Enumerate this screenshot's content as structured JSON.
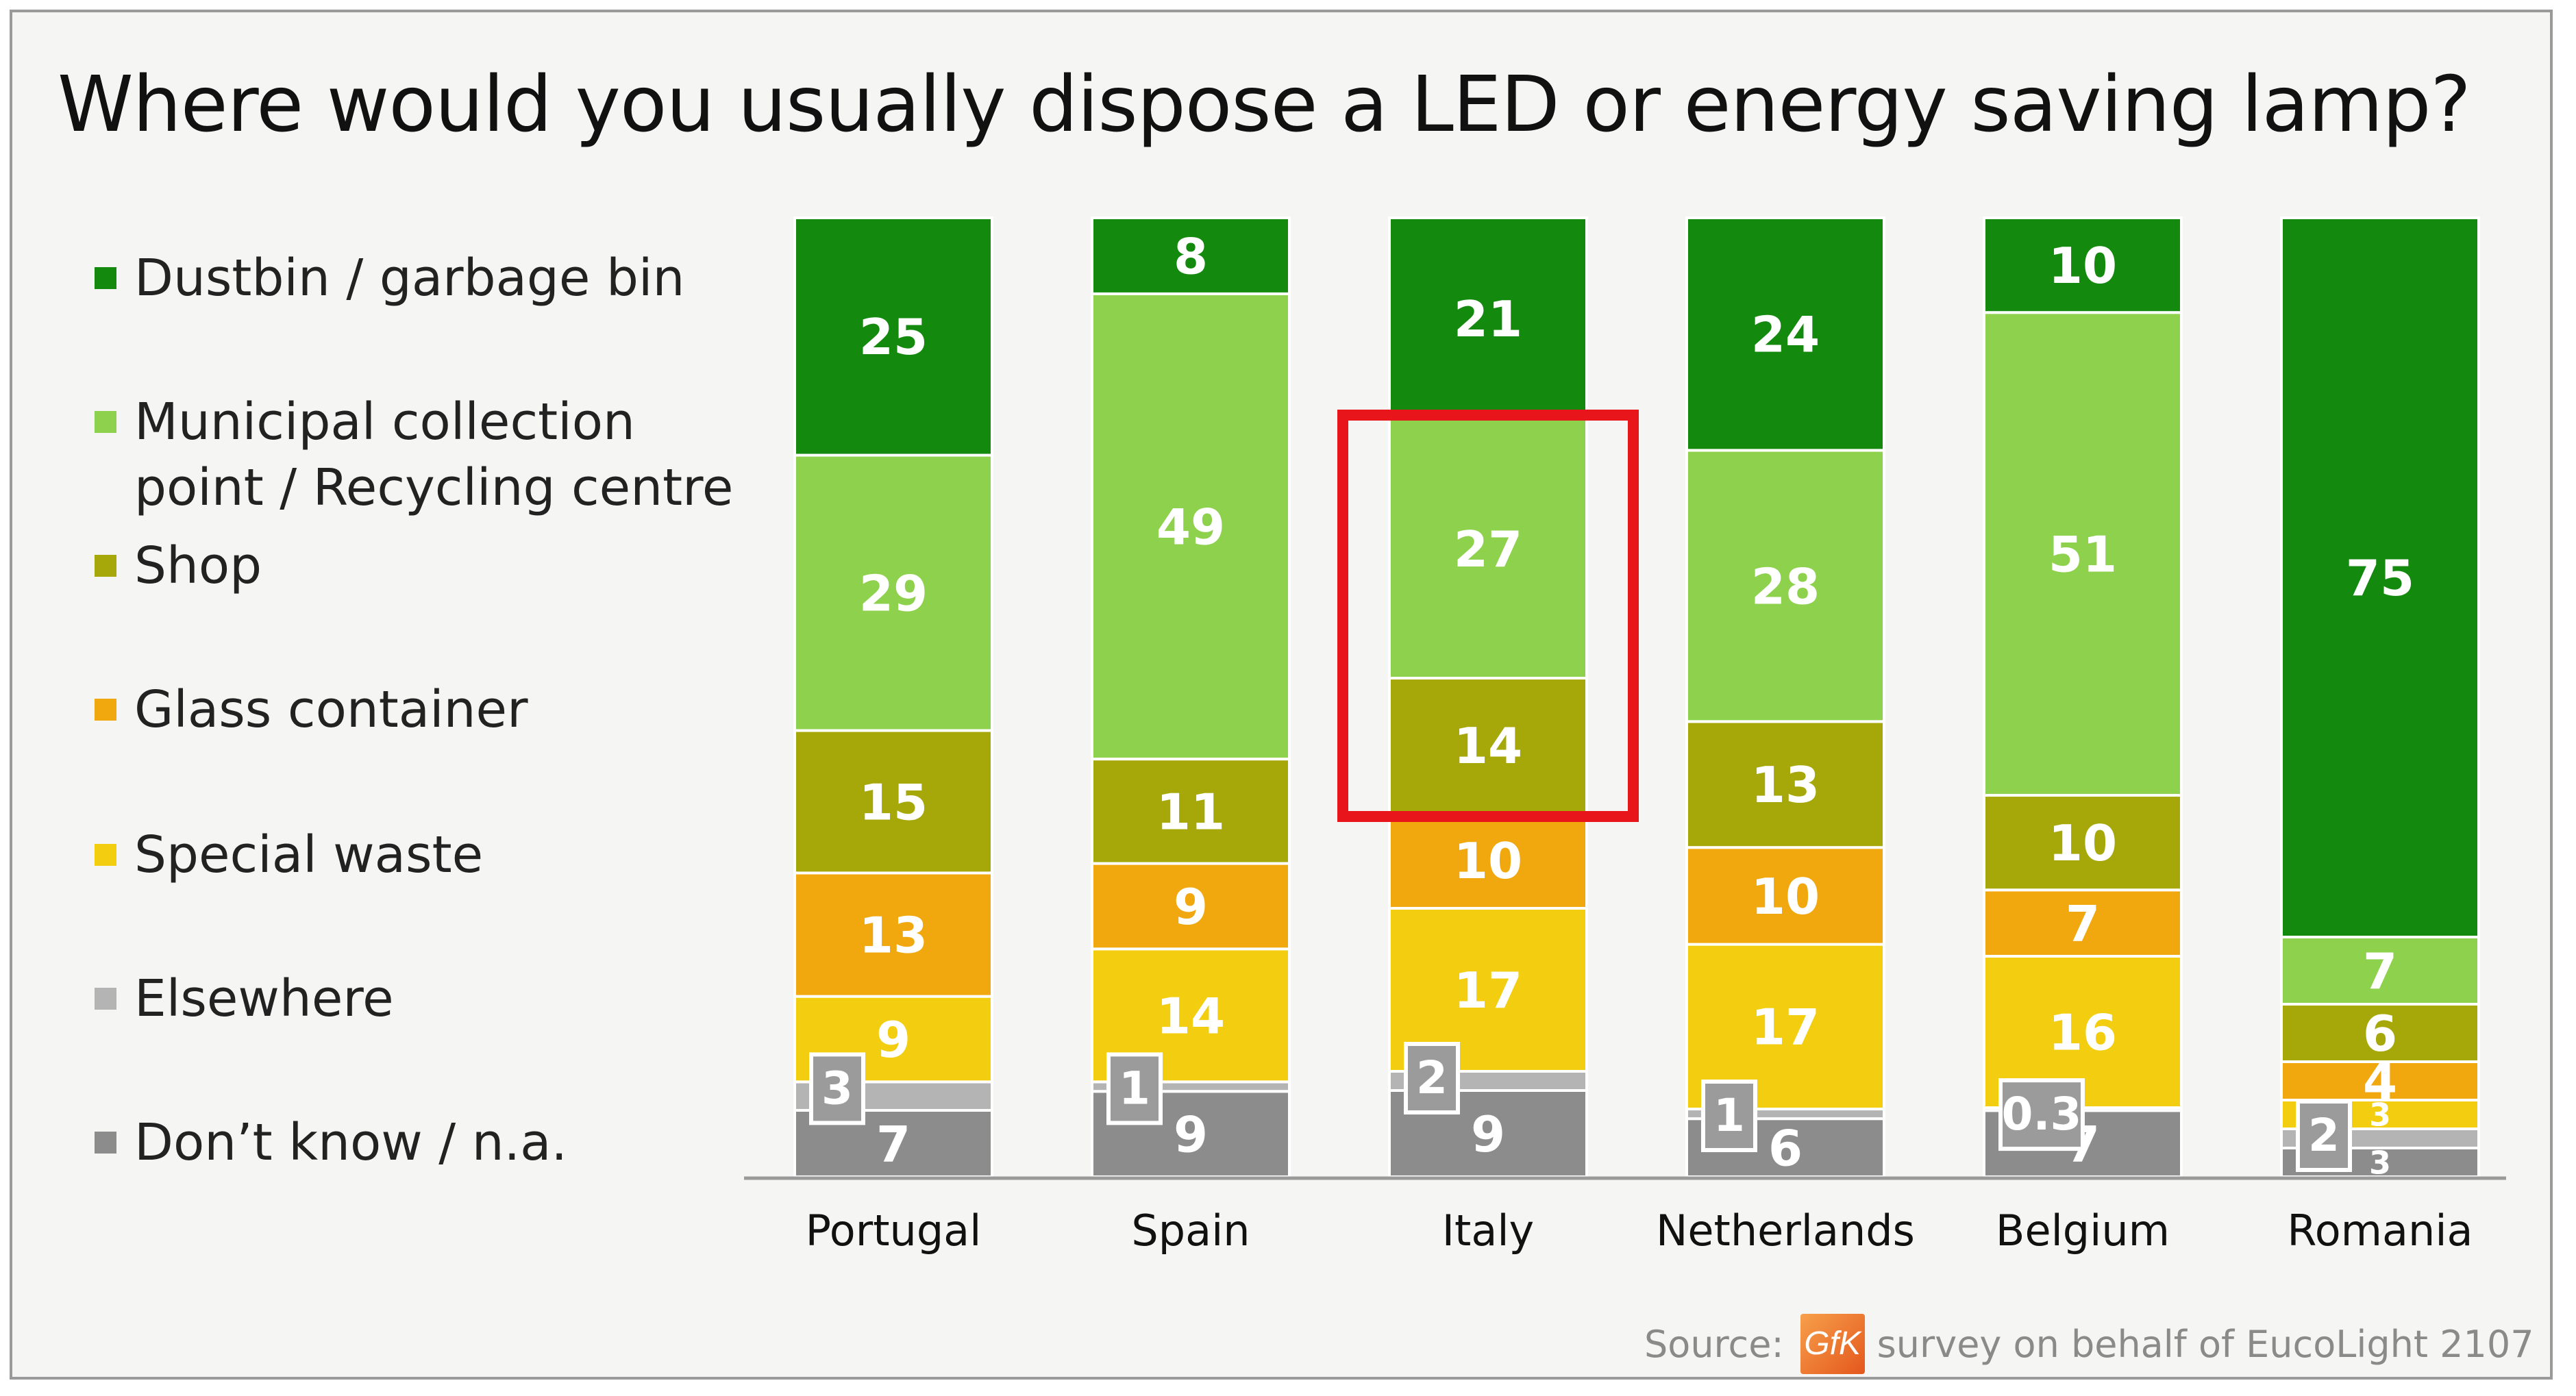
{
  "chart_data": {
    "type": "bar",
    "stacked": true,
    "title": "Where would you usually dispose a LED or energy saving lamp?",
    "categories": [
      "Portugal",
      "Spain",
      "Italy",
      "Netherlands",
      "Belgium",
      "Romania"
    ],
    "series": [
      {
        "name": "Don’t know / n.a.",
        "color": "#8c8c8c",
        "values": [
          7,
          9,
          9,
          6,
          7,
          3
        ]
      },
      {
        "name": "Elsewhere",
        "color": "#b4b4b4",
        "values": [
          3,
          1,
          2,
          1,
          0.3,
          2
        ]
      },
      {
        "name": "Special waste",
        "color": "#f2cd10",
        "values": [
          9,
          14,
          17,
          17,
          16,
          3
        ]
      },
      {
        "name": "Glass container",
        "color": "#f0a80e",
        "values": [
          13,
          9,
          10,
          10,
          7,
          4
        ]
      },
      {
        "name": "Shop",
        "color": "#a6a80a",
        "values": [
          15,
          11,
          14,
          13,
          10,
          6
        ]
      },
      {
        "name": "Municipal collection\npoint / Recycling centre",
        "color": "#8dd14c",
        "values": [
          29,
          49,
          27,
          28,
          51,
          7
        ]
      },
      {
        "name": "Dustbin / garbage bin",
        "color": "#138a0e",
        "values": [
          25,
          8,
          21,
          24,
          10,
          75
        ]
      }
    ],
    "ylim": [
      0,
      100
    ],
    "grid": false,
    "legend": "left",
    "highlight": {
      "category": "Italy",
      "series": [
        "Municipal collection\npoint / Recycling centre",
        "Shop"
      ],
      "color": "#e8161a"
    }
  },
  "legend_items": [
    {
      "label": "Dustbin / garbage bin",
      "color": "#138a0e"
    },
    {
      "label": "Municipal collection\npoint / Recycling centre",
      "color": "#8dd14c"
    },
    {
      "label": "Shop",
      "color": "#a6a80a"
    },
    {
      "label": "Glass container",
      "color": "#f0a80e"
    },
    {
      "label": "Special waste",
      "color": "#f2cd10"
    },
    {
      "label": "Elsewhere",
      "color": "#b4b4b4"
    },
    {
      "label": "Don’t know / n.a.",
      "color": "#8c8c8c"
    }
  ],
  "source": {
    "prefix": "Source:",
    "logo_text": "GfK",
    "suffix": "survey on behalf of EucoLight 2107"
  }
}
